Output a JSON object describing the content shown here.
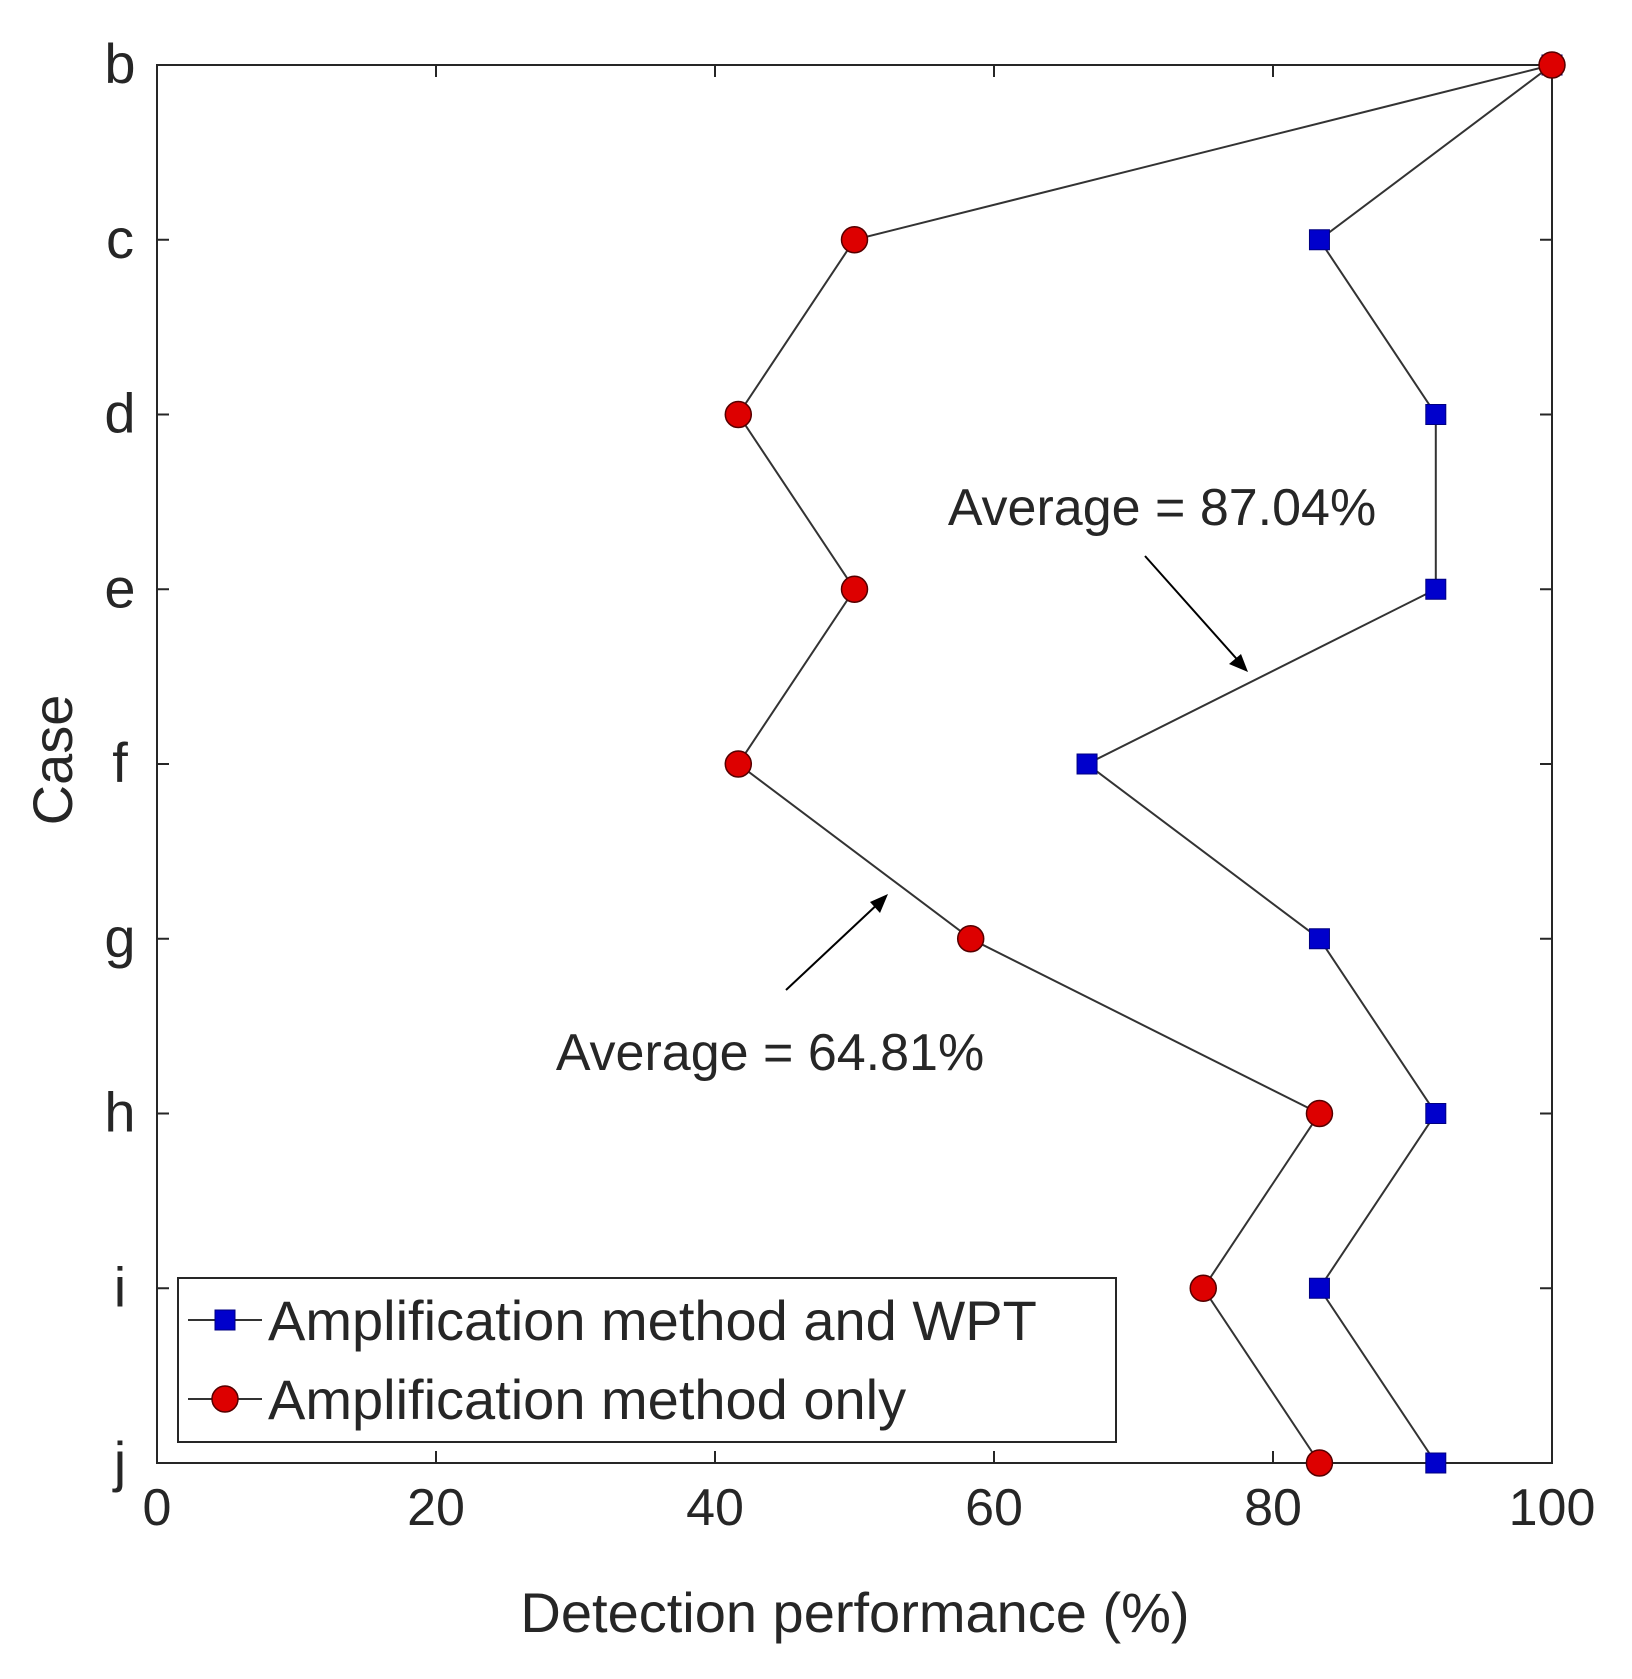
{
  "chart_data": {
    "type": "line",
    "orientation": "horizontal",
    "xlabel": "Detection performance (%)",
    "ylabel": "Case",
    "xlim": [
      0,
      100
    ],
    "x_ticks": [
      0,
      20,
      40,
      60,
      80,
      100
    ],
    "categories": [
      "b",
      "c",
      "d",
      "e",
      "f",
      "g",
      "h",
      "i",
      "j"
    ],
    "grid": false,
    "legend_position": "bottom-left",
    "series": [
      {
        "name": "Amplification method and WPT",
        "marker": "square",
        "color": "#0000cc",
        "values": [
          100,
          83.33,
          91.67,
          91.67,
          66.67,
          83.33,
          91.67,
          83.33,
          91.67
        ]
      },
      {
        "name": "Amplification method only",
        "marker": "circle",
        "color": "#dd0000",
        "values": [
          100,
          50,
          41.67,
          50,
          41.67,
          58.33,
          83.33,
          75,
          83.33
        ]
      }
    ],
    "annotations": [
      {
        "text": "Average = 87.04%",
        "points_to_series": "Amplification method and WPT",
        "near_case": "e-f"
      },
      {
        "text": "Average = 64.81%",
        "points_to_series": "Amplification method only",
        "near_case": "f-g"
      }
    ]
  }
}
